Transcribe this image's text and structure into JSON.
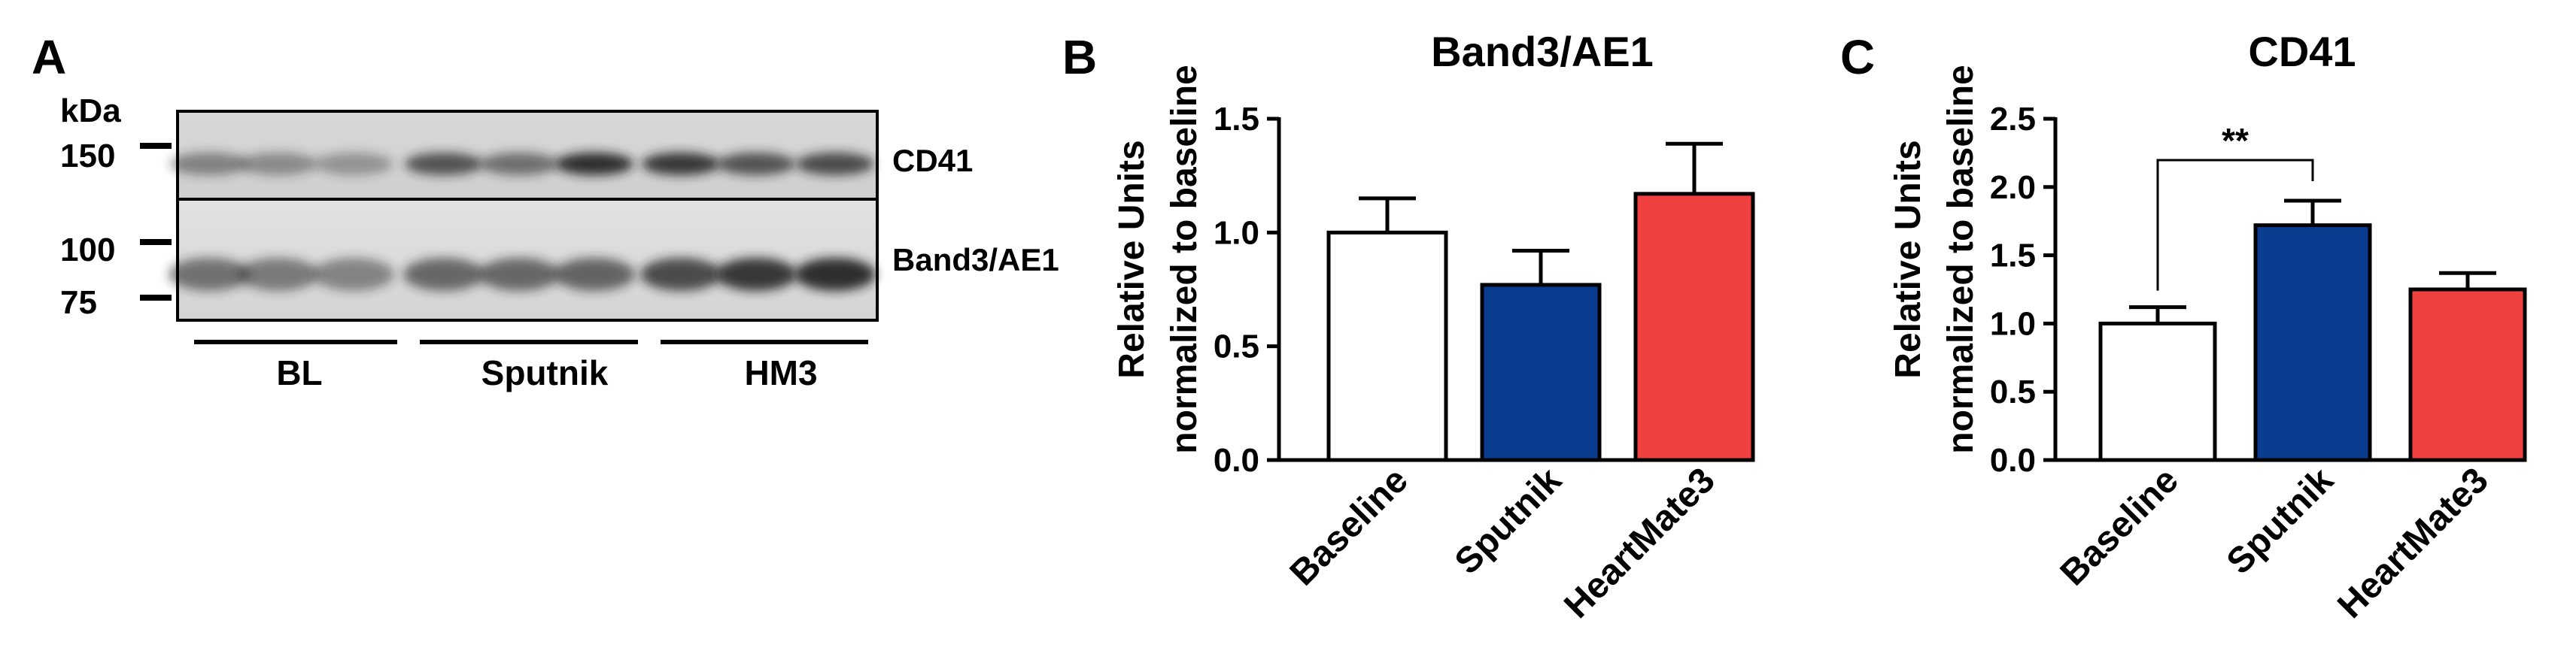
{
  "panels": {
    "a": "A",
    "b": "B",
    "c": "C"
  },
  "blot": {
    "unit": "kDa",
    "markers": [
      "150",
      "100",
      "75"
    ],
    "bands": [
      "CD41",
      "Band3/AE1"
    ],
    "groups": [
      "BL",
      "Sputnik",
      "HM3"
    ]
  },
  "colors": {
    "baseline": "#ffffff",
    "sputnik": "#0a3d8f",
    "heartmate": "#f04040",
    "axis": "#000000"
  },
  "chart_data": [
    {
      "type": "bar",
      "title": "Band3/AE1",
      "ylabel_line1": "Relative Units",
      "ylabel_line2": "normalized to baseline",
      "categories": [
        "Baseline",
        "Sputnik",
        "HeartMate3"
      ],
      "values": [
        1.0,
        0.77,
        1.17
      ],
      "errors": [
        0.15,
        0.15,
        0.22
      ],
      "ylim": [
        0,
        1.5
      ],
      "yticks": [
        "0.0",
        "0.5",
        "1.0",
        "1.5"
      ],
      "annotations": []
    },
    {
      "type": "bar",
      "title": "CD41",
      "ylabel_line1": "Relative Units",
      "ylabel_line2": "normalized to baseline",
      "categories": [
        "Baseline",
        "Sputnik",
        "HeartMate3"
      ],
      "values": [
        1.0,
        1.72,
        1.25
      ],
      "errors": [
        0.12,
        0.18,
        0.12
      ],
      "ylim": [
        0,
        2.5
      ],
      "yticks": [
        "0.0",
        "0.5",
        "1.0",
        "1.5",
        "2.0",
        "2.5"
      ],
      "annotations": [
        {
          "from": 0,
          "to": 1,
          "text": "**"
        }
      ]
    }
  ]
}
